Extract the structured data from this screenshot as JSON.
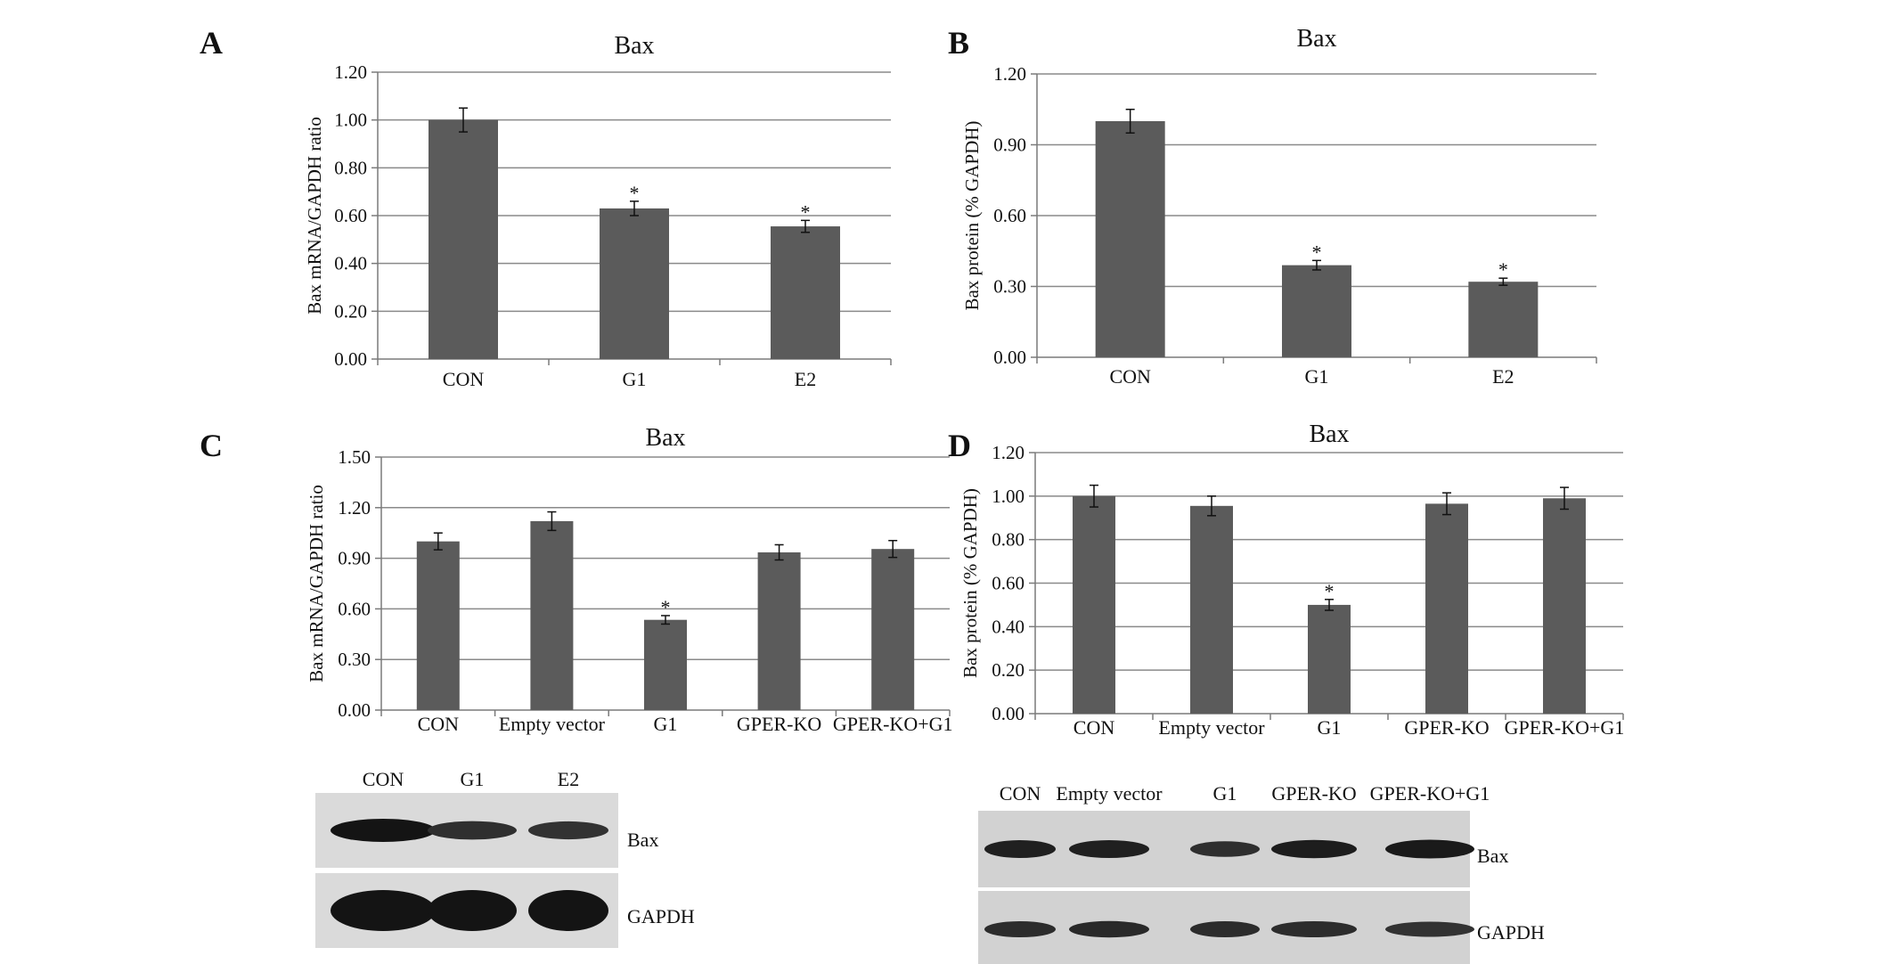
{
  "panels": [
    {
      "letter": "A"
    },
    {
      "letter": "B"
    },
    {
      "letter": "C"
    },
    {
      "letter": "D"
    }
  ],
  "colors": {
    "bar": "#5b5b5b",
    "grid": "#8a8a8a",
    "axis": "#7a7a7a",
    "text": "#111111"
  },
  "chart_data": [
    {
      "panel": "A",
      "type": "bar",
      "title": "Bax",
      "ylabel": "Bax mRNA/GAPDH ratio",
      "xlabel": "",
      "categories": [
        "CON",
        "G1",
        "E2"
      ],
      "values": [
        1.0,
        0.63,
        0.555
      ],
      "errors": [
        0.05,
        0.03,
        0.025
      ],
      "significance": [
        "",
        "*",
        "*"
      ],
      "ylim": [
        0,
        1.2
      ],
      "yticks": [
        "0.00",
        "0.20",
        "0.40",
        "0.60",
        "0.80",
        "1.00",
        "1.20"
      ],
      "grid": true,
      "legend": "none"
    },
    {
      "panel": "B",
      "type": "bar",
      "title": "Bax",
      "ylabel": "Bax protein (% GAPDH)",
      "xlabel": "",
      "categories": [
        "CON",
        "G1",
        "E2"
      ],
      "values": [
        1.0,
        0.39,
        0.32
      ],
      "errors": [
        0.05,
        0.02,
        0.015
      ],
      "significance": [
        "",
        "*",
        "*"
      ],
      "ylim": [
        0,
        1.2
      ],
      "yticks": [
        "0.00",
        "0.30",
        "0.60",
        "0.90",
        "1.20"
      ],
      "grid": true,
      "legend": "none"
    },
    {
      "panel": "C",
      "type": "bar",
      "title": "Bax",
      "ylabel": "Bax mRNA/GAPDH ratio",
      "xlabel": "",
      "categories": [
        "CON",
        "Empty vector",
        "G1",
        "GPER-KO",
        "GPER-KO+G1"
      ],
      "values": [
        1.0,
        1.12,
        0.535,
        0.935,
        0.955
      ],
      "errors": [
        0.05,
        0.055,
        0.025,
        0.045,
        0.05
      ],
      "significance": [
        "",
        "",
        "*",
        "",
        ""
      ],
      "ylim": [
        0,
        1.5
      ],
      "yticks": [
        "0.00",
        "0.30",
        "0.60",
        "0.90",
        "1.20",
        "1.50"
      ],
      "grid": true,
      "legend": "none"
    },
    {
      "panel": "D",
      "type": "bar",
      "title": "Bax",
      "ylabel": "Bax protein (% GAPDH)",
      "xlabel": "",
      "categories": [
        "CON",
        "Empty vector",
        "G1",
        "GPER-KO",
        "GPER-KO+G1"
      ],
      "values": [
        1.0,
        0.955,
        0.5,
        0.965,
        0.99
      ],
      "errors": [
        0.05,
        0.045,
        0.025,
        0.05,
        0.05
      ],
      "significance": [
        "",
        "",
        "*",
        "",
        ""
      ],
      "ylim": [
        0,
        1.2
      ],
      "yticks": [
        "0.00",
        "0.20",
        "0.40",
        "0.60",
        "0.80",
        "1.00",
        "1.20"
      ],
      "grid": true,
      "legend": "none"
    }
  ],
  "blots": [
    {
      "lanes": [
        "CON",
        "G1",
        "E2"
      ],
      "rows": [
        {
          "label": "Bax",
          "intensity": [
            1.0,
            0.55,
            0.5
          ]
        },
        {
          "label": "GAPDH",
          "intensity": [
            1.0,
            1.0,
            1.0
          ]
        }
      ]
    },
    {
      "lanes": [
        "CON",
        "Empty vector",
        "G1",
        "GPER-KO",
        "GPER-KO+G1"
      ],
      "rows": [
        {
          "label": "Bax",
          "intensity": [
            0.8,
            0.8,
            0.55,
            0.85,
            0.9
          ]
        },
        {
          "label": "GAPDH",
          "intensity": [
            0.6,
            0.65,
            0.6,
            0.6,
            0.5
          ]
        }
      ]
    }
  ]
}
